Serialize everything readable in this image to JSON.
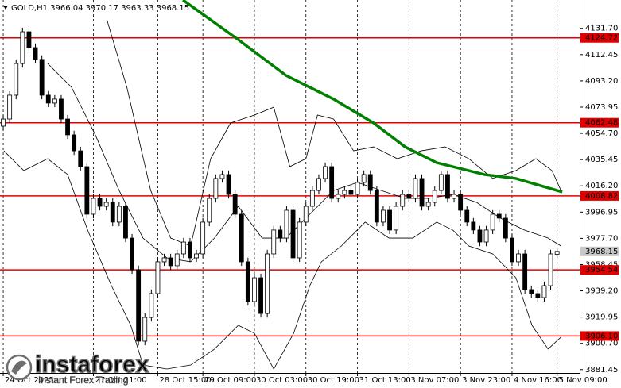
{
  "chart_data": {
    "type": "candlestick",
    "title": "GOLD,H1  3966.04 3970.17 3963.33 3968.15",
    "xlim": [
      -0.5,
      89.5
    ],
    "ylim": [
      3879,
      4152.5
    ],
    "yticks": [
      {
        "value": 4131.7,
        "label": "4131.70"
      },
      4112.45,
      {
        "value": 4093.2,
        "label": "4093.20"
      },
      4073.95,
      {
        "value": 4054.7,
        "label": "4054.70"
      },
      4035.45,
      {
        "value": 4016.2,
        "label": "4016.20"
      },
      3996.95,
      {
        "value": 3977.7,
        "label": "3977.70"
      },
      3958.45,
      {
        "value": 3939.2,
        "label": "3939.20"
      },
      3919.95,
      {
        "value": 3900.7,
        "label": "3900.70"
      },
      3881.45
    ],
    "xticks": [
      {
        "value": 0,
        "label": "24 Oct 2025"
      },
      {
        "value": 14,
        "label": "27 Oct 21:00"
      },
      {
        "value": 24,
        "label": "28 Oct 15:00"
      },
      {
        "value": 31,
        "label": "29 Oct 09:00"
      },
      {
        "value": 39,
        "label": "30 Oct 03:00"
      },
      {
        "value": 47,
        "label": "30 Oct 19:00"
      },
      {
        "value": 55,
        "label": "31 Oct 13:00"
      },
      {
        "value": 63,
        "label": "3 Nov 07:00"
      },
      {
        "value": 71,
        "label": "3 Nov 23:00"
      },
      {
        "value": 79,
        "label": "4 Nov 16:00"
      },
      {
        "value": 86,
        "label": "5 Nov 09:00"
      }
    ],
    "up_color": "#ffffff",
    "down_color": "#000000",
    "open": [
      4060.0,
      4065.2,
      4082.7,
      4105.9,
      4129.2,
      4117.6,
      4108.9,
      4082.7,
      4076.9,
      4079.8,
      4065.2,
      4053.6,
      4041.9,
      4030.3,
      3995.4,
      4007.0,
      4001.2,
      4004.1,
      3989.6,
      4001.2,
      3977.9,
      3954.7,
      3902.3,
      3919.7,
      3937.2,
      3960.5,
      3963.4,
      3957.6,
      3966.3,
      3975.0,
      3963.4,
      3966.3,
      3989.6,
      4007.0,
      4021.6,
      4024.5,
      4009.9,
      3995.4,
      3960.5,
      3931.4,
      3948.8,
      3922.6,
      3966.3,
      3983.8,
      3977.9,
      3998.3,
      3963.4,
      3989.6,
      4001.2,
      4012.8,
      4021.6,
      4030.3,
      4007.0,
      4009.9,
      4012.8,
      4009.9,
      4018.7,
      4024.5,
      4012.8,
      3989.6,
      3998.3,
      3983.8,
      4001.2,
      4009.9,
      4007.0,
      4021.6,
      4001.2,
      4004.1,
      4012.8,
      4024.5,
      4007.0,
      4009.9,
      3998.3,
      3989.6,
      3983.8,
      3975.0,
      3983.8,
      3995.4,
      3992.5,
      3977.9,
      3960.5,
      3966.3,
      3940.1,
      3937.2,
      3934.3,
      3943.0,
      3966.04
    ],
    "high": [
      4068.2,
      4085.7,
      4108.9,
      4132.2,
      4132.2,
      4120.6,
      4111.9,
      4085.7,
      4082.8,
      4082.8,
      4068.2,
      4056.6,
      4044.9,
      4033.3,
      4010.0,
      4010.0,
      4007.1,
      4007.1,
      4004.2,
      4004.2,
      3980.9,
      3957.7,
      3922.7,
      3940.2,
      3963.5,
      3966.4,
      3966.4,
      3969.3,
      3978.0,
      3978.0,
      3969.3,
      3992.6,
      4010.0,
      4024.6,
      4027.5,
      4027.5,
      4012.9,
      3998.4,
      3963.5,
      3951.8,
      3951.8,
      3969.3,
      3986.8,
      3986.8,
      4001.3,
      4001.3,
      3992.6,
      4004.2,
      4015.8,
      4024.6,
      4033.3,
      4033.3,
      4012.9,
      4015.8,
      4015.8,
      4021.7,
      4027.5,
      4027.5,
      4015.8,
      4001.3,
      4001.3,
      4004.2,
      4012.9,
      4012.9,
      4024.6,
      4024.6,
      4007.1,
      4015.8,
      4027.5,
      4027.5,
      4012.9,
      4012.9,
      4001.3,
      3992.6,
      3986.8,
      3986.8,
      3998.4,
      3998.4,
      3995.5,
      3980.9,
      3969.3,
      3969.3,
      3943.1,
      3940.2,
      3946.0,
      3969.3,
      3970.17
    ],
    "low": [
      4057.0,
      4062.2,
      4079.7,
      4102.9,
      4114.6,
      4105.9,
      4079.7,
      4073.9,
      4073.9,
      4062.2,
      4050.6,
      4038.9,
      4027.3,
      3992.4,
      3992.4,
      3998.2,
      3998.2,
      3986.6,
      3986.6,
      3974.9,
      3951.7,
      3899.3,
      3899.3,
      3916.7,
      3934.2,
      3957.5,
      3954.6,
      3954.6,
      3963.3,
      3960.4,
      3960.4,
      3963.3,
      3986.6,
      4004.0,
      4018.6,
      4006.9,
      3992.4,
      3957.5,
      3928.4,
      3928.4,
      3919.6,
      3919.6,
      3963.3,
      3974.9,
      3974.9,
      3960.4,
      3960.4,
      3986.6,
      3998.2,
      4009.8,
      4018.6,
      4004.0,
      4004.0,
      4006.9,
      4006.9,
      4006.9,
      4015.7,
      4009.8,
      3986.6,
      3986.6,
      3980.8,
      3980.8,
      3998.2,
      4004.0,
      4004.0,
      3998.2,
      3998.2,
      4001.1,
      4009.8,
      4004.0,
      4004.0,
      3995.3,
      3986.6,
      3980.8,
      3972.0,
      3972.0,
      3980.8,
      3989.5,
      3974.9,
      3957.5,
      3957.5,
      3937.1,
      3934.2,
      3931.3,
      3931.3,
      3940.0,
      3963.33
    ],
    "close": [
      4065.2,
      4082.7,
      4105.9,
      4129.2,
      4117.6,
      4108.9,
      4082.7,
      4076.9,
      4079.8,
      4065.2,
      4053.6,
      4041.9,
      4030.3,
      3995.4,
      4007.0,
      4001.2,
      4004.1,
      3989.6,
      4001.2,
      3977.9,
      3954.7,
      3902.3,
      3919.7,
      3937.2,
      3960.5,
      3963.4,
      3957.6,
      3966.3,
      3975.0,
      3963.4,
      3966.3,
      3989.6,
      4007.0,
      4021.6,
      4024.5,
      4009.9,
      3995.4,
      3960.5,
      3931.4,
      3948.8,
      3922.6,
      3966.3,
      3983.8,
      3977.9,
      3998.3,
      3963.4,
      3989.6,
      4001.2,
      4012.8,
      4021.6,
      4030.3,
      4007.0,
      4009.9,
      4012.8,
      4009.9,
      4018.7,
      4024.5,
      4012.8,
      3989.6,
      3998.3,
      3983.8,
      4001.2,
      4009.9,
      4007.0,
      4021.6,
      4001.2,
      4004.1,
      4012.8,
      4024.5,
      4007.0,
      4009.9,
      3998.3,
      3989.6,
      3983.8,
      3975.0,
      3983.8,
      3995.4,
      3992.5,
      3977.9,
      3960.5,
      3966.3,
      3940.1,
      3937.2,
      3934.3,
      3943.0,
      3966.3,
      3968.15
    ],
    "lines": [
      {
        "color": "#000000",
        "width": 0.8,
        "x": [
          16.1,
          19.2,
          22.9,
          26.0,
          29.1,
          32.2,
          35.3,
          39.0,
          42.0,
          44.5,
          47.0,
          48.8,
          51.3,
          54.4,
          57.5,
          61.2,
          64.9,
          68.6,
          72.3,
          76.0,
          79.6,
          82.7,
          85.2,
          86.6
        ],
        "values": [
          4138.0,
          4088.5,
          4012.8,
          3977.9,
          3972.1,
          4036.1,
          4062.3,
          4068.1,
          4073.9,
          4030.3,
          4036.1,
          4068.1,
          4065.2,
          4041.9,
          4044.8,
          4036.1,
          4041.9,
          4044.8,
          4036.1,
          4021.6,
          4027.4,
          4036.1,
          4027.4,
          4012.8
        ]
      },
      {
        "color": "#000000",
        "width": 0.8,
        "x": [
          6.9,
          10.6,
          14.3,
          18.0,
          21.7,
          25.4,
          29.1,
          32.8,
          36.5,
          40.2,
          43.9,
          47.6,
          51.3,
          55.0,
          58.7,
          62.4,
          66.1,
          69.8,
          73.5,
          77.2,
          80.9,
          84.6,
          86.6
        ],
        "values": [
          4105.9,
          4088.5,
          4053.6,
          4012.8,
          3977.9,
          3963.4,
          3960.5,
          3977.9,
          4001.2,
          3977.9,
          3977.9,
          3995.4,
          4012.8,
          4018.7,
          4012.8,
          4007.0,
          4007.0,
          4009.9,
          4004.1,
          3992.5,
          3983.8,
          3977.9,
          3972.1
        ]
      },
      {
        "color": "#000000",
        "width": 0.8,
        "x": [
          0.1,
          3.2,
          6.9,
          10.0,
          13.1,
          16.8,
          19.8,
          21.7,
          25.4,
          29.1,
          32.8,
          36.5,
          39.0,
          42.0,
          45.1,
          47.6,
          49.4,
          52.5,
          56.2,
          59.9,
          63.6,
          67.3,
          69.8,
          72.3,
          76.0,
          79.6,
          82.1,
          84.6,
          86.6
        ],
        "values": [
          4041.9,
          4027.4,
          4036.1,
          4024.5,
          3983.8,
          3943.0,
          3913.9,
          3884.8,
          3881.9,
          3884.8,
          3896.5,
          3913.9,
          3908.1,
          3881.9,
          3908.1,
          3943.0,
          3960.5,
          3972.1,
          3989.6,
          3977.9,
          3977.9,
          3989.6,
          3983.8,
          3972.1,
          3966.3,
          3948.8,
          3913.9,
          3896.5,
          3905.3
        ]
      },
      {
        "color": "#008000",
        "width": 3.5,
        "x": [
          27.9,
          36.5,
          43.9,
          51.3,
          57.5,
          62.4,
          67.3,
          74.7,
          79.6,
          86.8
        ],
        "values": [
          4152.5,
          4123.4,
          4097.2,
          4079.8,
          4062.3,
          4044.8,
          4033.2,
          4024.5,
          4021.6,
          4011.7
        ]
      }
    ],
    "level_color": "#e00000",
    "levels": [
      4124.72,
      4062.48,
      4008.82,
      3954.54,
      {
        "value": 3906.1,
        "label": "3906.10"
      }
    ],
    "watermark": {
      "brand": "instaforex",
      "tagline": "Instant Forex Trading"
    }
  }
}
